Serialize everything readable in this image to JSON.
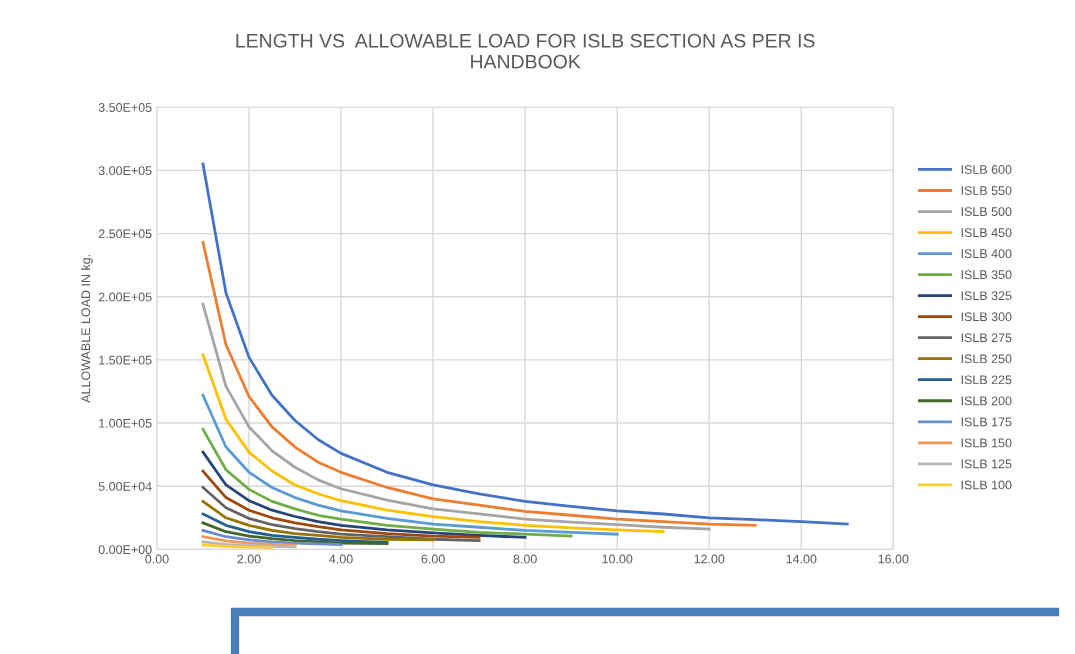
{
  "chart_data": {
    "type": "line",
    "title": "LENGTH VS  ALLOWABLE LOAD FOR ISLB SECTION AS PER IS\nHANDBOOK",
    "ylabel": "ALLOWABLE LOAD IN kg.",
    "x": [
      1,
      1.5,
      2,
      2.5,
      3,
      3.5,
      4,
      5,
      6,
      7,
      8,
      9,
      10,
      11,
      12,
      13,
      14,
      15
    ],
    "series": [
      {
        "name": "ISLB 600",
        "color": "#4472c4",
        "values": [
          305000,
          203000,
          152000,
          122000,
          102000,
          87000,
          76000,
          61000,
          51000,
          44000,
          38000,
          34000,
          30500,
          28000,
          25000,
          23500,
          22000,
          20000
        ]
      },
      {
        "name": "ISLB 550",
        "color": "#ed7d31",
        "values": [
          243000,
          162000,
          121000,
          97000,
          81000,
          69000,
          61000,
          49000,
          40000,
          35000,
          30000,
          27000,
          24000,
          22000,
          20000,
          19000,
          null,
          null
        ]
      },
      {
        "name": "ISLB 500",
        "color": "#a5a5a5",
        "values": [
          194000,
          129000,
          97000,
          78000,
          65000,
          55000,
          48000,
          39000,
          32000,
          28000,
          24000,
          21500,
          19500,
          17500,
          16000,
          null,
          null,
          null
        ]
      },
      {
        "name": "ISLB 450",
        "color": "#ffc000",
        "values": [
          154000,
          103000,
          77000,
          62000,
          51000,
          44000,
          38500,
          31000,
          26000,
          22000,
          19000,
          17000,
          15500,
          14000,
          null,
          null,
          null,
          null
        ]
      },
      {
        "name": "ISLB 400",
        "color": "#5b9bd5",
        "values": [
          122000,
          81000,
          61000,
          49000,
          41000,
          35000,
          30500,
          24500,
          20000,
          17500,
          15000,
          13500,
          12000,
          null,
          null,
          null,
          null,
          null
        ]
      },
      {
        "name": "ISLB 350",
        "color": "#70ad47",
        "values": [
          95000,
          63000,
          47500,
          38000,
          32000,
          27000,
          24000,
          19000,
          16000,
          13500,
          12000,
          10500,
          null,
          null,
          null,
          null,
          null,
          null
        ]
      },
      {
        "name": "ISLB 325",
        "color": "#264478",
        "values": [
          77000,
          51000,
          38500,
          31000,
          26000,
          22000,
          19000,
          15500,
          13000,
          11000,
          9500,
          null,
          null,
          null,
          null,
          null,
          null,
          null
        ]
      },
      {
        "name": "ISLB 300",
        "color": "#9e480e",
        "values": [
          62000,
          41000,
          31000,
          25000,
          21000,
          18000,
          15500,
          12500,
          10500,
          9500,
          null,
          null,
          null,
          null,
          null,
          null,
          null,
          null
        ]
      },
      {
        "name": "ISLB 275",
        "color": "#636363",
        "values": [
          49000,
          33000,
          24500,
          19500,
          16500,
          14000,
          12000,
          10000,
          8000,
          7000,
          null,
          null,
          null,
          null,
          null,
          null,
          null,
          null
        ]
      },
      {
        "name": "ISLB 250",
        "color": "#997300",
        "values": [
          38000,
          25000,
          19000,
          15000,
          12500,
          11000,
          9500,
          8000,
          7500,
          null,
          null,
          null,
          null,
          null,
          null,
          null,
          null,
          null
        ]
      },
      {
        "name": "ISLB 225",
        "color": "#255e91",
        "values": [
          28000,
          19000,
          14000,
          11000,
          9500,
          8000,
          7000,
          5500,
          null,
          null,
          null,
          null,
          null,
          null,
          null,
          null,
          null,
          null
        ]
      },
      {
        "name": "ISLB 200",
        "color": "#43682b",
        "values": [
          21000,
          14000,
          10500,
          8500,
          7000,
          6000,
          5000,
          4500,
          null,
          null,
          null,
          null,
          null,
          null,
          null,
          null,
          null,
          null
        ]
      },
      {
        "name": "ISLB 175",
        "color": "#698ed0",
        "values": [
          15000,
          10000,
          7500,
          6000,
          5000,
          4300,
          3800,
          null,
          null,
          null,
          null,
          null,
          null,
          null,
          null,
          null,
          null,
          null
        ]
      },
      {
        "name": "ISLB 150",
        "color": "#f1975a",
        "values": [
          10000,
          6700,
          5000,
          4000,
          3300,
          null,
          null,
          null,
          null,
          null,
          null,
          null,
          null,
          null,
          null,
          null,
          null,
          null
        ]
      },
      {
        "name": "ISLB 125",
        "color": "#b7b7b7",
        "values": [
          6000,
          4000,
          3000,
          2400,
          2000,
          null,
          null,
          null,
          null,
          null,
          null,
          null,
          null,
          null,
          null,
          null,
          null,
          null
        ]
      },
      {
        "name": "ISLB 100",
        "color": "#ffcd33",
        "values": [
          3500,
          2300,
          1800,
          1400,
          null,
          null,
          null,
          null,
          null,
          null,
          null,
          null,
          null,
          null,
          null,
          null,
          null,
          null
        ]
      }
    ],
    "xlim": [
      0,
      16
    ],
    "xticks": [
      {
        "value": 0,
        "label": "0.00"
      },
      {
        "value": 2,
        "label": "2.00"
      },
      {
        "value": 4,
        "label": "4.00"
      },
      {
        "value": 6,
        "label": "6.00"
      },
      {
        "value": 8,
        "label": "8.00"
      },
      {
        "value": 10,
        "label": "10.00"
      },
      {
        "value": 12,
        "label": "12.00"
      },
      {
        "value": 14,
        "label": "14.00"
      },
      {
        "value": 16,
        "label": "16.00"
      }
    ],
    "ylim": [
      0,
      350000
    ],
    "yticks": [
      {
        "value": 0,
        "label": "0.00E+00"
      },
      {
        "value": 50000,
        "label": "5.00E+04"
      },
      {
        "value": 100000,
        "label": "1.00E+05"
      },
      {
        "value": 150000,
        "label": "1.50E+05"
      },
      {
        "value": 200000,
        "label": "2.00E+05"
      },
      {
        "value": 250000,
        "label": "2.50E+05"
      },
      {
        "value": 300000,
        "label": "3.00E+05"
      },
      {
        "value": 350000,
        "label": "3.50E+05"
      }
    ],
    "grid": true,
    "legend": "right",
    "marker": "none",
    "line_style": "solid"
  }
}
